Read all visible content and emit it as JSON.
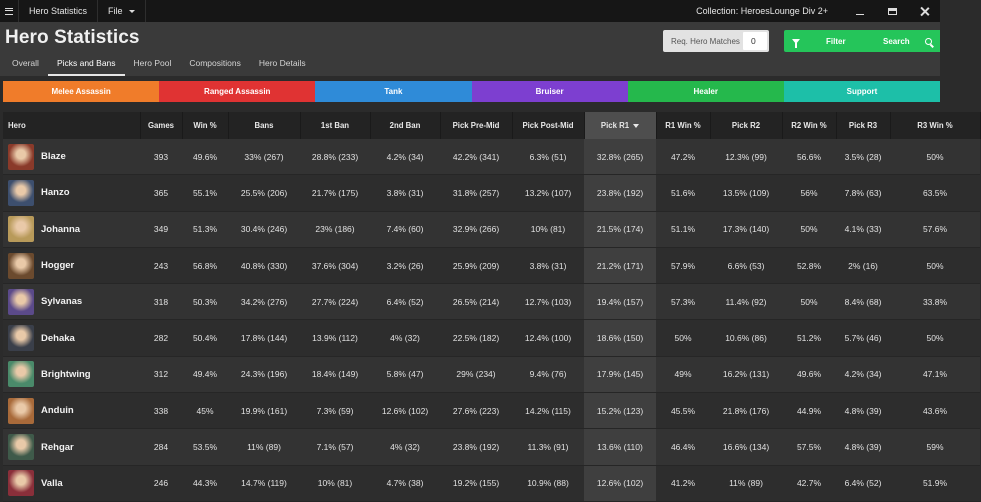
{
  "titlebar": {
    "app_title": "Hero Statistics",
    "file_menu": "File",
    "collection": "Collection: HeroesLounge Div 2+"
  },
  "header": {
    "title": "Hero Statistics",
    "tabs": [
      {
        "label": "Overall",
        "active": false
      },
      {
        "label": "Picks and Bans",
        "active": true
      },
      {
        "label": "Hero Pool",
        "active": false
      },
      {
        "label": "Compositions",
        "active": false
      },
      {
        "label": "Hero Details",
        "active": false
      }
    ],
    "req_label": "Req. Hero Matches",
    "req_value": "0",
    "filter_label": "Filter",
    "search_label": "Search"
  },
  "roles": [
    {
      "label": "Melee Assassin",
      "color": "#f07c2a"
    },
    {
      "label": "Ranged Assassin",
      "color": "#e03333"
    },
    {
      "label": "Tank",
      "color": "#2f8bd8"
    },
    {
      "label": "Bruiser",
      "color": "#7d3fd0"
    },
    {
      "label": "Healer",
      "color": "#25b84c"
    },
    {
      "label": "Support",
      "color": "#1dbfa8"
    }
  ],
  "table": {
    "columns": [
      "Hero",
      "Games",
      "Win %",
      "Bans",
      "1st Ban",
      "2nd Ban",
      "Pick Pre-Mid",
      "Pick Post-Mid",
      "Pick R1",
      "R1 Win %",
      "Pick R2",
      "R2 Win %",
      "Pick R3",
      "R3 Win %"
    ],
    "sorted_column": "Pick R1",
    "rows": [
      {
        "hero": "Blaze",
        "portrait": "#8a3a2a",
        "cells": [
          "393",
          "49.6%",
          "33% (267)",
          "28.8% (233)",
          "4.2% (34)",
          "42.2% (341)",
          "6.3% (51)",
          "32.8% (265)",
          "47.2%",
          "12.3% (99)",
          "56.6%",
          "3.5% (28)",
          "50%"
        ]
      },
      {
        "hero": "Hanzo",
        "portrait": "#3d4f6e",
        "cells": [
          "365",
          "55.1%",
          "25.5% (206)",
          "21.7% (175)",
          "3.8% (31)",
          "31.8% (257)",
          "13.2% (107)",
          "23.8% (192)",
          "51.6%",
          "13.5% (109)",
          "56%",
          "7.8% (63)",
          "63.5%"
        ]
      },
      {
        "hero": "Johanna",
        "portrait": "#b89a5a",
        "cells": [
          "349",
          "51.3%",
          "30.4% (246)",
          "23% (186)",
          "7.4% (60)",
          "32.9% (266)",
          "10% (81)",
          "21.5% (174)",
          "51.1%",
          "17.3% (140)",
          "50%",
          "4.1% (33)",
          "57.6%"
        ]
      },
      {
        "hero": "Hogger",
        "portrait": "#6b4a2e",
        "cells": [
          "243",
          "56.8%",
          "40.8% (330)",
          "37.6% (304)",
          "3.2% (26)",
          "25.9% (209)",
          "3.8% (31)",
          "21.2% (171)",
          "57.9%",
          "6.6% (53)",
          "52.8%",
          "2% (16)",
          "50%"
        ]
      },
      {
        "hero": "Sylvanas",
        "portrait": "#5b4a8a",
        "cells": [
          "318",
          "50.3%",
          "34.2% (276)",
          "27.7% (224)",
          "6.4% (52)",
          "26.5% (214)",
          "12.7% (103)",
          "19.4% (157)",
          "57.3%",
          "11.4% (92)",
          "50%",
          "8.4% (68)",
          "33.8%"
        ]
      },
      {
        "hero": "Dehaka",
        "portrait": "#3a3f4a",
        "cells": [
          "282",
          "50.4%",
          "17.8% (144)",
          "13.9% (112)",
          "4% (32)",
          "22.5% (182)",
          "12.4% (100)",
          "18.6% (150)",
          "50%",
          "10.6% (86)",
          "51.2%",
          "5.7% (46)",
          "50%"
        ]
      },
      {
        "hero": "Brightwing",
        "portrait": "#4a8a6a",
        "cells": [
          "312",
          "49.4%",
          "24.3% (196)",
          "18.4% (149)",
          "5.8% (47)",
          "29% (234)",
          "9.4% (76)",
          "17.9% (145)",
          "49%",
          "16.2% (131)",
          "49.6%",
          "4.2% (34)",
          "47.1%"
        ]
      },
      {
        "hero": "Anduin",
        "portrait": "#a86a3a",
        "cells": [
          "338",
          "45%",
          "19.9% (161)",
          "7.3% (59)",
          "12.6% (102)",
          "27.6% (223)",
          "14.2% (115)",
          "15.2% (123)",
          "45.5%",
          "21.8% (176)",
          "44.9%",
          "4.8% (39)",
          "43.6%"
        ]
      },
      {
        "hero": "Rehgar",
        "portrait": "#3f5a4a",
        "cells": [
          "284",
          "53.5%",
          "11% (89)",
          "7.1% (57)",
          "4% (32)",
          "23.8% (192)",
          "11.3% (91)",
          "13.6% (110)",
          "46.4%",
          "16.6% (134)",
          "57.5%",
          "4.8% (39)",
          "59%"
        ]
      },
      {
        "hero": "Valla",
        "portrait": "#8a2f3a",
        "cells": [
          "246",
          "44.3%",
          "14.7% (119)",
          "10% (81)",
          "4.7% (38)",
          "19.2% (155)",
          "10.9% (88)",
          "12.6% (102)",
          "41.2%",
          "11% (89)",
          "42.7%",
          "6.4% (52)",
          "51.9%"
        ]
      }
    ]
  }
}
